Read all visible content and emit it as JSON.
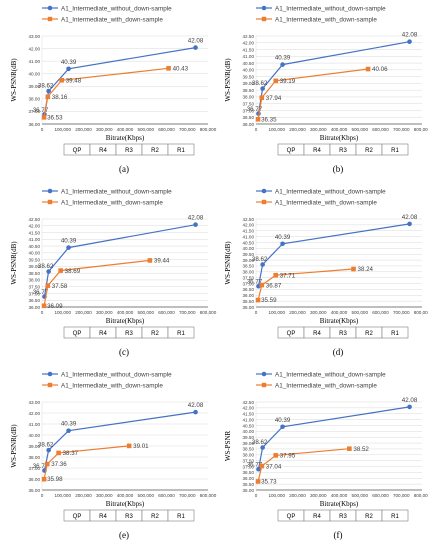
{
  "colors": {
    "blue": "#4472C4",
    "orange": "#ED7D31",
    "grid": "#D9D9D9",
    "axis": "#595959",
    "text": "#404040"
  },
  "legend": {
    "without": "A1_Intermediate_without_down-sample",
    "with": "A1_Intermediate_with_down-sample"
  },
  "table_labels": [
    "QP",
    "R4",
    "R3",
    "R2",
    "R1"
  ],
  "chart_data": [
    {
      "type": "line",
      "label": "(a)",
      "ylabel": "WS-PSNR(dB)",
      "xlabel": "Bitrate(Kbps)",
      "xlim": [
        0,
        800000
      ],
      "ylim": [
        36.0,
        43.0
      ],
      "ystep": 1.0,
      "xstep": 100000,
      "series": [
        {
          "name": "A1_Intermediate_without_down-sample",
          "x": [
            12000,
            32000,
            128000,
            740000
          ],
          "y": [
            36.77,
            38.62,
            40.39,
            42.08
          ],
          "labels": [
            "36.77",
            "38.62",
            "40.39",
            "42.08"
          ]
        },
        {
          "name": "A1_Intermediate_with_down-sample",
          "x": [
            10000,
            28000,
            95000,
            610000
          ],
          "y": [
            36.53,
            38.16,
            39.48,
            40.43
          ],
          "labels": [
            "36.53",
            "38.16",
            "39.48",
            "40.43"
          ]
        }
      ]
    },
    {
      "type": "line",
      "label": "(b)",
      "ylabel": "WS-PSNR(dB)",
      "xlabel": "Bitrate(Kbps)",
      "xlim": [
        0,
        800000
      ],
      "ylim": [
        36.0,
        42.5
      ],
      "ystep": 0.5,
      "xstep": 100000,
      "series": [
        {
          "name": "A1_Intermediate_without_down-sample",
          "x": [
            12000,
            32000,
            128000,
            740000
          ],
          "y": [
            36.77,
            38.62,
            40.39,
            42.08
          ],
          "labels": [
            "36.77",
            "38.62",
            "40.39",
            "42.08"
          ]
        },
        {
          "name": "A1_Intermediate_with_down-sample",
          "x": [
            10000,
            28000,
            95000,
            540000
          ],
          "y": [
            36.35,
            37.94,
            39.19,
            40.06
          ],
          "labels": [
            "36.35",
            "37.94",
            "39.19",
            "40.06"
          ]
        }
      ]
    },
    {
      "type": "line",
      "label": "(c)",
      "ylabel": "WS-PSNR(dB)",
      "xlabel": "Bitrate(Kbps)",
      "xlim": [
        0,
        800000
      ],
      "ylim": [
        36.0,
        42.5
      ],
      "ystep": 0.5,
      "xstep": 100000,
      "series": [
        {
          "name": "A1_Intermediate_without_down-sample",
          "x": [
            12000,
            32000,
            128000,
            740000
          ],
          "y": [
            36.77,
            38.62,
            40.39,
            42.08
          ],
          "labels": [
            "36.77",
            "38.62",
            "40.39",
            "42.08"
          ]
        },
        {
          "name": "A1_Intermediate_with_down-sample",
          "x": [
            10000,
            28000,
            90000,
            520000
          ],
          "y": [
            36.09,
            37.58,
            38.69,
            39.44
          ],
          "labels": [
            "36.09",
            "37.58",
            "38.69",
            "39.44"
          ]
        }
      ]
    },
    {
      "type": "line",
      "label": "(d)",
      "ylabel": "WS-PSNR(dB)",
      "xlabel": "Bitrate(Kbps)",
      "xlim": [
        0,
        800000
      ],
      "ylim": [
        35.0,
        42.5
      ],
      "ystep": 0.5,
      "xstep": 100000,
      "series": [
        {
          "name": "A1_Intermediate_without_down-sample",
          "x": [
            12000,
            32000,
            128000,
            740000
          ],
          "y": [
            36.77,
            38.62,
            40.39,
            42.08
          ],
          "labels": [
            "36.77",
            "38.62",
            "40.39",
            "42.08"
          ]
        },
        {
          "name": "A1_Intermediate_with_down-sample",
          "x": [
            10000,
            28000,
            95000,
            470000
          ],
          "y": [
            35.59,
            36.87,
            37.71,
            38.24
          ],
          "labels": [
            "35.59",
            "36.87",
            "37.71",
            "38.24"
          ]
        }
      ]
    },
    {
      "type": "line",
      "label": "(e)",
      "ylabel": "WS-PSNR(dB)",
      "xlabel": "Bitrate(Kbps)",
      "xlim": [
        0,
        800000
      ],
      "ylim": [
        35.0,
        43.0
      ],
      "ystep": 1.0,
      "xstep": 100000,
      "series": [
        {
          "name": "A1_Intermediate_without_down-sample",
          "x": [
            12000,
            32000,
            128000,
            740000
          ],
          "y": [
            36.77,
            38.62,
            40.39,
            42.08
          ],
          "labels": [
            "36.77",
            "38.62",
            "40.39",
            "42.08"
          ]
        },
        {
          "name": "A1_Intermediate_with_down-sample",
          "x": [
            10000,
            25000,
            80000,
            420000
          ],
          "y": [
            35.98,
            37.36,
            38.37,
            39.01
          ],
          "labels": [
            "35.98",
            "37.36",
            "38.37",
            "39.01"
          ]
        }
      ]
    },
    {
      "type": "line",
      "label": "(f)",
      "ylabel": "WS-PSNR",
      "xlabel": "Bitrate(Kbps)",
      "xlim": [
        0,
        800000
      ],
      "ylim": [
        35.0,
        42.5
      ],
      "ystep": 0.5,
      "xstep": 100000,
      "series": [
        {
          "name": "A1_Intermediate_without_down-sample",
          "x": [
            12000,
            32000,
            128000,
            740000
          ],
          "y": [
            36.77,
            38.62,
            40.39,
            42.08
          ],
          "labels": [
            "36.77",
            "38.62",
            "40.39",
            "42.08"
          ]
        },
        {
          "name": "A1_Intermediate_with_down-sample",
          "x": [
            10000,
            28000,
            95000,
            450000
          ],
          "y": [
            35.73,
            37.04,
            37.95,
            38.52
          ],
          "labels": [
            "35.73",
            "37.04",
            "37.95",
            "38.52"
          ]
        }
      ]
    }
  ]
}
